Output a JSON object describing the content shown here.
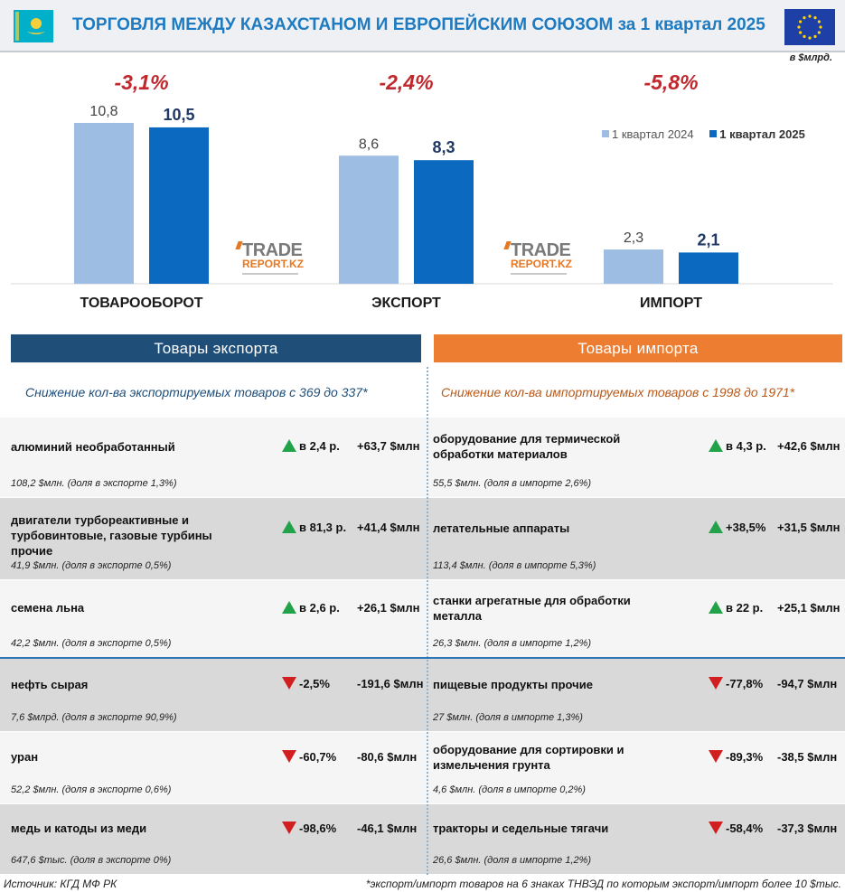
{
  "header": {
    "title_main": "ТОРГОВЛЯ МЕЖДУ КАЗАХСТАНОМ И ЕВРОПЕЙСКИМ СОЮЗОМ",
    "title_period": "за 1 квартал 2025",
    "unit": "в $млрд."
  },
  "colors": {
    "light": "#9dbde3",
    "dark": "#0b6ac0",
    "change": "#c0282d"
  },
  "legend": {
    "series1": "1 квартал 2024",
    "series2": "1 квартал 2025"
  },
  "logo": {
    "line1": "TRADE",
    "line2": "REPORT.KZ"
  },
  "chart_data": {
    "type": "bar",
    "title": "ТОРГОВЛЯ МЕЖДУ КАЗАХСТАНОМ И ЕВРОПЕЙСКИМ СОЮЗОМ за 1 квартал 2025",
    "ylabel": "в $млрд.",
    "categories": [
      "ТОВАРООБОРОТ",
      "ЭКСПОРТ",
      "ИМПОРТ"
    ],
    "series": [
      {
        "name": "1 квартал 2024",
        "values": [
          10.8,
          8.6,
          2.3
        ],
        "labels": [
          "10,8",
          "8,6",
          "2,3"
        ]
      },
      {
        "name": "1 квартал 2025",
        "values": [
          10.5,
          8.3,
          2.1
        ],
        "labels": [
          "10,5",
          "8,3",
          "2,1"
        ]
      }
    ],
    "changes": [
      "-3,1%",
      "-2,4%",
      "-5,8%"
    ],
    "ylim": [
      0,
      10.8
    ],
    "legend_position": "top-right"
  },
  "export": {
    "heading": "Товары экспорта",
    "subtitle": "Снижение кол-ва экспортируемых товаров с 369 до 337*",
    "items": [
      {
        "name": "алюминий необработанный",
        "ratio": "в 2,4 р.",
        "delta": "+63,7 $млн",
        "share": "108,2 $млн. (доля в экспорте 1,3%)",
        "dir": "up"
      },
      {
        "name": "двигатели турбореактивные и турбовинтовые, газовые турбины прочие",
        "ratio": "в 81,3 р.",
        "delta": "+41,4 $млн",
        "share": "41,9 $млн. (доля в экспорте 0,5%)",
        "dir": "up"
      },
      {
        "name": "семена льна",
        "ratio": "в 2,6 р.",
        "delta": "+26,1 $млн",
        "share": "42,2 $млн. (доля в экспорте 0,5%)",
        "dir": "up"
      },
      {
        "name": "нефть сырая",
        "ratio": "-2,5%",
        "delta": "-191,6 $млн",
        "share": "7,6 $млрд. (доля в экспорте 90,9%)",
        "dir": "down"
      },
      {
        "name": "уран",
        "ratio": "-60,7%",
        "delta": "-80,6 $млн",
        "share": "52,2 $млн. (доля в экспорте 0,6%)",
        "dir": "down"
      },
      {
        "name": "медь и катоды из меди",
        "ratio": "-98,6%",
        "delta": "-46,1 $млн",
        "share": "647,6 $тыс. (доля в экспорте 0%)",
        "dir": "down"
      }
    ]
  },
  "import": {
    "heading": "Товары импорта",
    "subtitle": "Снижение кол-ва импортируемых товаров с 1998 до 1971*",
    "items": [
      {
        "name": "оборудование для термической обработки материалов",
        "ratio": "в 4,3 р.",
        "delta": "+42,6 $млн",
        "share": "55,5 $млн. (доля в импорте 2,6%)",
        "dir": "up"
      },
      {
        "name": "летательные аппараты",
        "ratio": "+38,5%",
        "delta": "+31,5 $млн",
        "share": "113,4 $млн. (доля в импорте 5,3%)",
        "dir": "up"
      },
      {
        "name": "станки агрегатные для обработки металла",
        "ratio": "в 22 р.",
        "delta": "+25,1 $млн",
        "share": "26,3 $млн. (доля в импорте 1,2%)",
        "dir": "up"
      },
      {
        "name": "пищевые продукты прочие",
        "ratio": "-77,8%",
        "delta": "-94,7 $млн",
        "share": "27 $млн. (доля в импорте 1,3%)",
        "dir": "down"
      },
      {
        "name": "оборудование для сортировки и измельчения грунта",
        "ratio": "-89,3%",
        "delta": "-38,5 $млн",
        "share": "4,6 $млн. (доля в импорте 0,2%)",
        "dir": "down"
      },
      {
        "name": "тракторы и седельные тягачи",
        "ratio": "-58,4%",
        "delta": "-37,3 $млн",
        "share": "26,6 $млн. (доля в импорте 1,2%)",
        "dir": "down"
      }
    ]
  },
  "footer": {
    "source": "Источник: КГД МФ РК",
    "note": "*экспорт/импорт товаров на 6 знаках ТНВЭД по которым экспорт/импорт более 10 $тыс."
  }
}
